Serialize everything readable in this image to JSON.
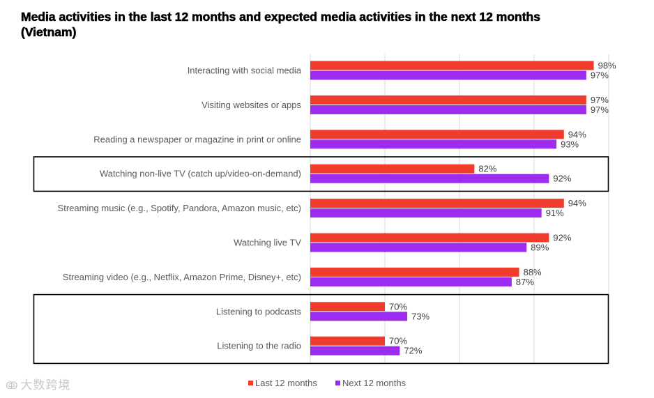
{
  "chart_data": {
    "type": "bar",
    "orientation": "horizontal",
    "title": "Media activities in the last 12 months and expected media activities in the next 12 months (Vietnam)",
    "categories": [
      "Interacting with social media",
      "Visiting websites or apps",
      "Reading a newspaper or magazine in print or online",
      "Watching non-live TV (catch up/video-on-demand)",
      "Streaming music (e.g., Spotify, Pandora, Amazon music, etc)",
      "Watching live TV",
      "Streaming video (e.g., Netflix, Amazon Prime, Disney+, etc)",
      "Listening to podcasts",
      "Listening to the radio"
    ],
    "series": [
      {
        "name": "Last 12 months",
        "color": "#f03c2d",
        "values": [
          98,
          97,
          94,
          82,
          94,
          92,
          88,
          70,
          70
        ],
        "labels": [
          "98%",
          "97%",
          "94%",
          "82%",
          "94%",
          "92%",
          "88%",
          "70%",
          "70%"
        ]
      },
      {
        "name": "Next 12 months",
        "color": "#9b2cf0",
        "values": [
          97,
          97,
          93,
          92,
          91,
          89,
          87,
          73,
          72
        ],
        "labels": [
          "97%",
          "97%",
          "93%",
          "92%",
          "91%",
          "89%",
          "87%",
          "73%",
          "72%"
        ]
      }
    ],
    "xlim": [
      60,
      100
    ],
    "xgrid": [
      60,
      70,
      80,
      90,
      100
    ],
    "grid": true,
    "legend_position": "bottom",
    "highlighted_groups": [
      [
        3
      ],
      [
        7,
        8
      ]
    ]
  },
  "watermark": {
    "icon": "ↂ",
    "text": "大数跨境"
  }
}
